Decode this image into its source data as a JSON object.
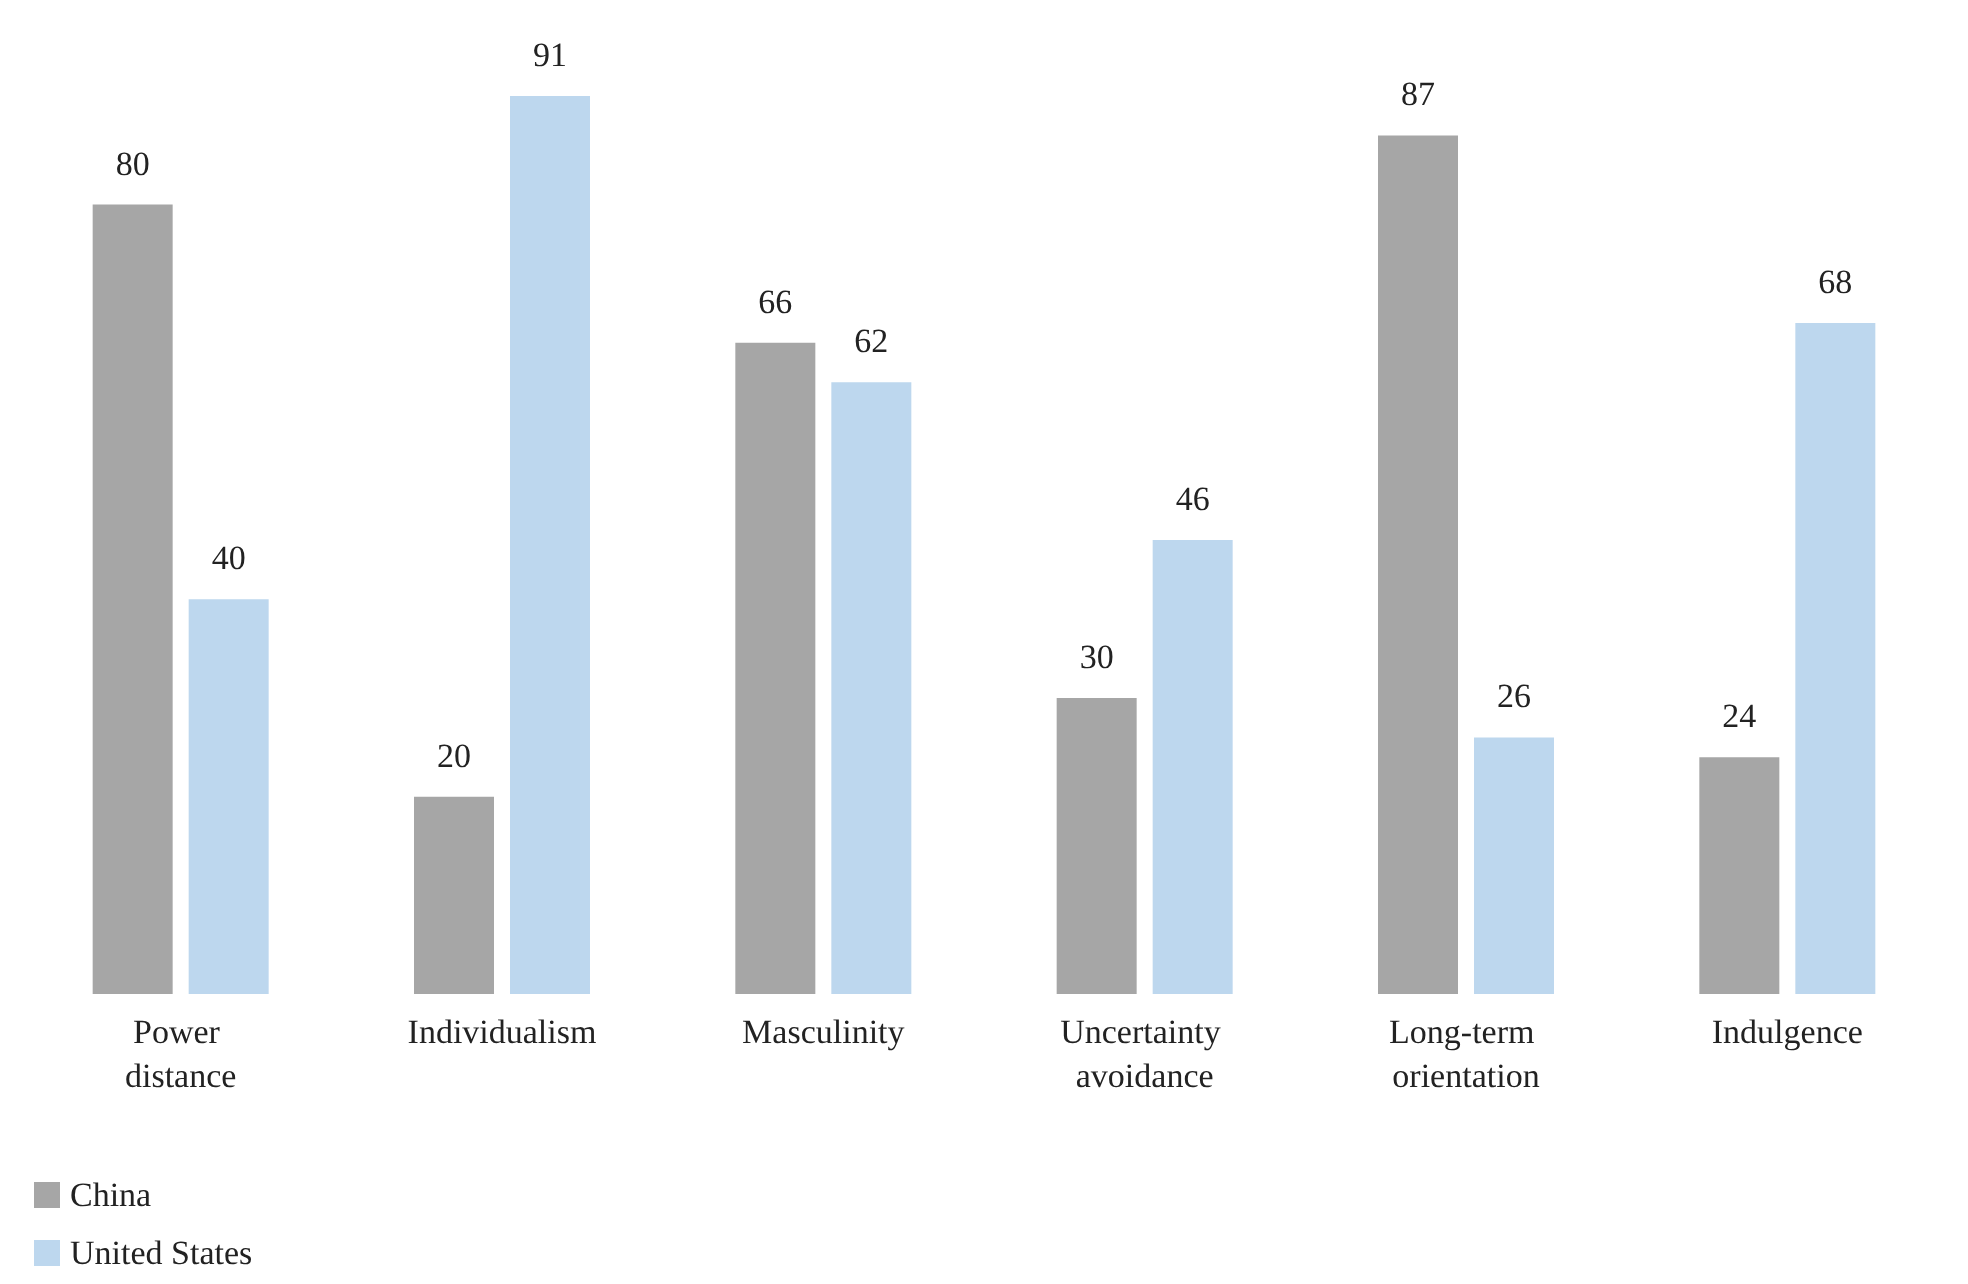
{
  "chart_data": {
    "type": "bar",
    "categories": [
      "Power distance",
      "Individualism",
      "Masculinity",
      "Uncertainty avoidance",
      "Long-term orientation",
      "Indulgence"
    ],
    "series": [
      {
        "name": "China",
        "color": "#a6a6a6",
        "values": [
          80,
          20,
          66,
          30,
          87,
          24
        ]
      },
      {
        "name": "United States",
        "color": "#bdd7ee",
        "values": [
          40,
          91,
          62,
          46,
          26,
          68
        ]
      }
    ],
    "data_labels": true,
    "legend": "bottom left"
  }
}
